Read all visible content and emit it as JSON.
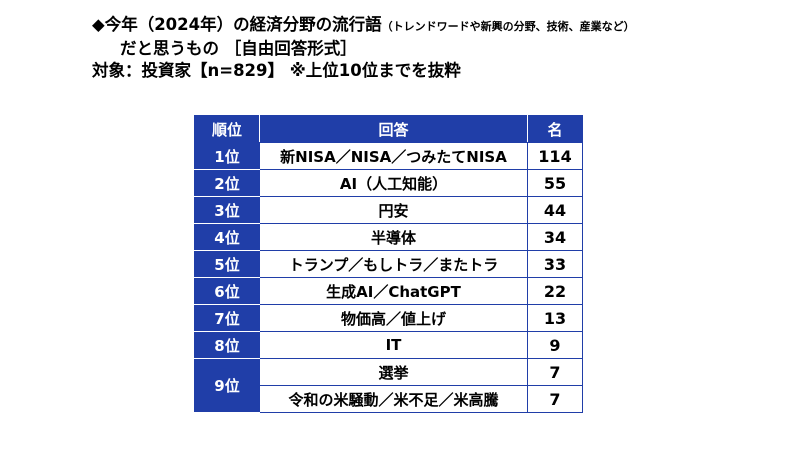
{
  "heading": {
    "line1_main": "◆今年（2024年）の経済分野の流行語",
    "line1_note": "（トレンドワードや新興の分野、技術、産業など）",
    "line2": "だと思うもの ［自由回答形式］",
    "line3": "対象：投資家【n=829】 ※上位10位までを抜粋"
  },
  "chart_data": {
    "type": "table",
    "columns": [
      "順位",
      "回答",
      "名"
    ],
    "rows": [
      {
        "rank": "1位",
        "answer": "新NISA／NISA／つみたてNISA",
        "count": 114
      },
      {
        "rank": "2位",
        "answer": "AI（人工知能）",
        "count": 55
      },
      {
        "rank": "3位",
        "answer": "円安",
        "count": 44
      },
      {
        "rank": "4位",
        "answer": "半導体",
        "count": 34
      },
      {
        "rank": "5位",
        "answer": "トランプ／もしトラ／またトラ",
        "count": 33
      },
      {
        "rank": "6位",
        "answer": "生成AI／ChatGPT",
        "count": 22
      },
      {
        "rank": "7位",
        "answer": "物価高／値上げ",
        "count": 13
      },
      {
        "rank": "8位",
        "answer": "IT",
        "count": 9
      },
      {
        "rank": "9位",
        "answer": "選挙",
        "count": 7
      },
      {
        "rank": "9位",
        "answer": "令和の米騒動／米不足／米高騰",
        "count": 7
      }
    ],
    "colors": {
      "header_bg": "#203ea8",
      "header_text": "#ffffff",
      "border": "#203ea8"
    }
  }
}
